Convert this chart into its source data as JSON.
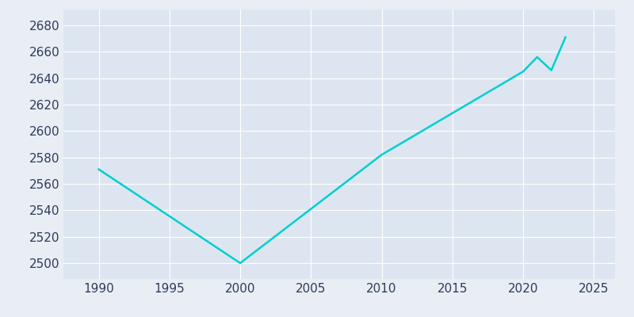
{
  "years": [
    1990,
    2000,
    2010,
    2020,
    2021,
    2022,
    2023
  ],
  "population": [
    2571,
    2500,
    2582,
    2645,
    2656,
    2646,
    2671
  ],
  "line_color": "#00CED1",
  "fig_bg_color": "#E8EEF4",
  "axes_bg_color": "#DDE6F0",
  "xlim": [
    1987.5,
    2026.5
  ],
  "ylim": [
    2488,
    2692
  ],
  "xticks": [
    1990,
    1995,
    2000,
    2005,
    2010,
    2015,
    2020,
    2025
  ],
  "yticks": [
    2500,
    2520,
    2540,
    2560,
    2580,
    2600,
    2620,
    2640,
    2660,
    2680
  ],
  "grid_color": "#FFFFFF",
  "tick_label_color": "#2E3B5A",
  "linewidth": 1.8,
  "tick_fontsize": 11
}
